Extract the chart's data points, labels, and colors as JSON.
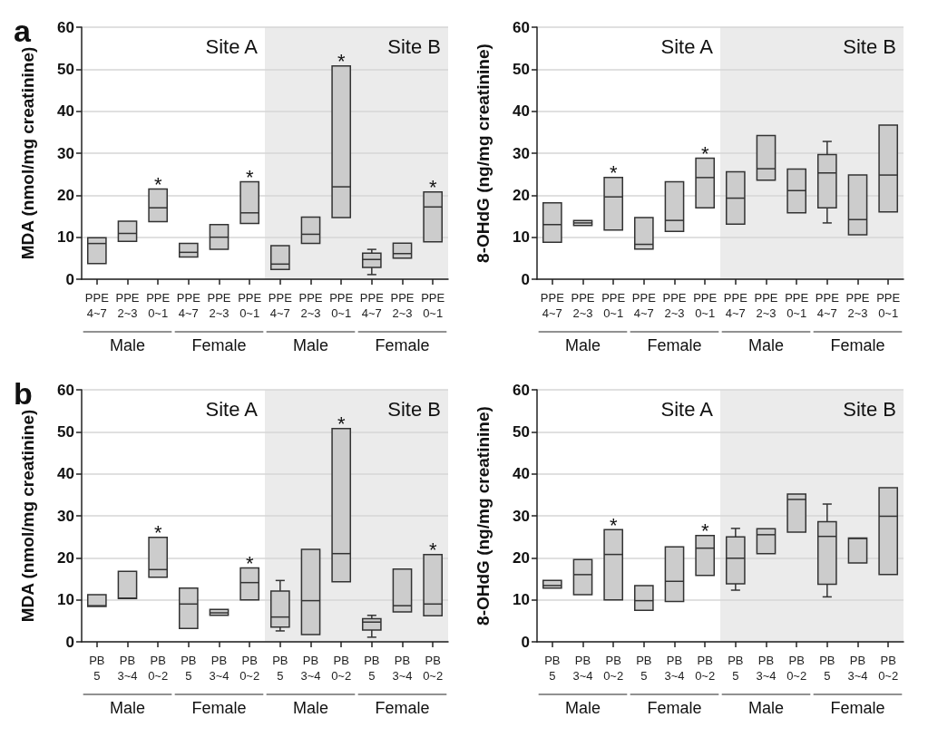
{
  "chart_data": [
    {
      "type": "box",
      "title": "a",
      "ylabel": "MDA (nmol/mg creatinine)",
      "color": "#cccccc",
      "grid": "y",
      "categories": [
        "PPE\n4~7",
        "PPE\n2~3",
        "PPE\n0~1",
        "PPE\n4~7",
        "PPE\n2~3",
        "PPE\n0~1",
        "PPE\n4~7",
        "PPE\n2~3",
        "PPE\n0~1",
        "PPE\n4~7",
        "PPE\n2~3",
        "PPE\n0~1"
      ],
      "ylim": [
        0,
        60
      ],
      "yticks": [
        0,
        10,
        20,
        30,
        40,
        50,
        60
      ],
      "boxes": [
        {
          "low": 3.7,
          "q1": 3.7,
          "median": 8.5,
          "q3": 9.9,
          "high": 9.9
        },
        {
          "low": 9,
          "q1": 9,
          "median": 10.9,
          "q3": 13.8,
          "high": 13.8
        },
        {
          "low": 13.7,
          "q1": 13.7,
          "median": 17,
          "q3": 21.5,
          "high": 21.5
        },
        {
          "low": 5.3,
          "q1": 5.3,
          "median": 6.4,
          "q3": 8.5,
          "high": 8.5
        },
        {
          "low": 7.1,
          "q1": 7.1,
          "median": 10,
          "q3": 13,
          "high": 13
        },
        {
          "low": 13.3,
          "q1": 13.3,
          "median": 15.8,
          "q3": 23.2,
          "high": 23.2
        },
        {
          "low": 2.3,
          "q1": 2.3,
          "median": 3.6,
          "q3": 8,
          "high": 8
        },
        {
          "low": 8.5,
          "q1": 8.5,
          "median": 10.7,
          "q3": 14.8,
          "high": 14.8
        },
        {
          "low": 14.7,
          "q1": 14.7,
          "median": 22,
          "q3": 50.8,
          "high": 50.8
        },
        {
          "low": 1.1,
          "q1": 2.8,
          "median": 4.7,
          "q3": 6.2,
          "high": 7.1
        },
        {
          "low": 5,
          "q1": 5,
          "median": 6.1,
          "q3": 8.6,
          "high": 8.6
        },
        {
          "low": 8.9,
          "q1": 8.9,
          "median": 17.2,
          "q3": 20.8,
          "high": 20.8
        }
      ],
      "value_labels": [
        null,
        null,
        "*",
        null,
        null,
        "*",
        null,
        null,
        "*",
        null,
        null,
        "*"
      ],
      "annotations": [
        "Site A",
        "Site B",
        "Male",
        "Female",
        "Male",
        "Female"
      ]
    },
    {
      "type": "box",
      "ylabel": "8-OHdG (ng/mg creatinine)",
      "color": "#cccccc",
      "grid": "y",
      "categories": [
        "PPE\n4~7",
        "PPE\n2~3",
        "PPE\n0~1",
        "PPE\n4~7",
        "PPE\n2~3",
        "PPE\n0~1",
        "PPE\n4~7",
        "PPE\n2~3",
        "PPE\n0~1",
        "PPE\n4~7",
        "PPE\n2~3",
        "PPE\n0~1"
      ],
      "ylim": [
        0,
        60
      ],
      "yticks": [
        0,
        10,
        20,
        30,
        40,
        50,
        60
      ],
      "boxes": [
        {
          "low": 8.8,
          "q1": 8.8,
          "median": 13,
          "q3": 18.2,
          "high": 18.2
        },
        {
          "low": 12.8,
          "q1": 12.8,
          "median": 13.4,
          "q3": 14,
          "high": 14
        },
        {
          "low": 11.7,
          "q1": 11.7,
          "median": 19.6,
          "q3": 24.2,
          "high": 24.2
        },
        {
          "low": 7.2,
          "q1": 7.2,
          "median": 8.3,
          "q3": 14.7,
          "high": 14.7
        },
        {
          "low": 11.4,
          "q1": 11.4,
          "median": 14,
          "q3": 23.2,
          "high": 23.2
        },
        {
          "low": 17,
          "q1": 17,
          "median": 24.2,
          "q3": 28.8,
          "high": 28.8
        },
        {
          "low": 13.1,
          "q1": 13.1,
          "median": 19.3,
          "q3": 25.6,
          "high": 25.6
        },
        {
          "low": 23.6,
          "q1": 23.6,
          "median": 26.3,
          "q3": 34.2,
          "high": 34.2
        },
        {
          "low": 15.8,
          "q1": 15.8,
          "median": 21.1,
          "q3": 26.2,
          "high": 26.2
        },
        {
          "low": 13.4,
          "q1": 17,
          "median": 25.3,
          "q3": 29.7,
          "high": 32.8
        },
        {
          "low": 10.6,
          "q1": 10.6,
          "median": 14.2,
          "q3": 24.8,
          "high": 24.8
        },
        {
          "low": 16,
          "q1": 16,
          "median": 24.8,
          "q3": 36.7,
          "high": 36.7
        }
      ],
      "value_labels": [
        null,
        null,
        "*",
        null,
        null,
        "*",
        null,
        null,
        null,
        null,
        null,
        null
      ],
      "annotations": [
        "Site A",
        "Site B",
        "Male",
        "Female",
        "Male",
        "Female"
      ]
    },
    {
      "type": "box",
      "title": "b",
      "ylabel": "MDA (nmol/mg creatinine)",
      "color": "#cccccc",
      "grid": "y",
      "categories": [
        "PB\n5",
        "PB\n3~4",
        "PB\n0~2",
        "PB\n5",
        "PB\n3~4",
        "PB\n0~2",
        "PB\n5",
        "PB\n3~4",
        "PB\n0~2",
        "PB\n5",
        "PB\n3~4",
        "PB\n0~2"
      ],
      "ylim": [
        0,
        60
      ],
      "yticks": [
        0,
        10,
        20,
        30,
        40,
        50,
        60
      ],
      "boxes": [
        {
          "low": 8.4,
          "q1": 8.4,
          "median": 8.6,
          "q3": 11.2,
          "high": 11.2
        },
        {
          "low": 10.3,
          "q1": 10.3,
          "median": 10.4,
          "q3": 16.8,
          "high": 16.8
        },
        {
          "low": 15.4,
          "q1": 15.4,
          "median": 17.2,
          "q3": 24.9,
          "high": 24.9
        },
        {
          "low": 3.2,
          "q1": 3.2,
          "median": 9,
          "q3": 12.8,
          "high": 12.8
        },
        {
          "low": 6.3,
          "q1": 6.3,
          "median": 6.9,
          "q3": 7.7,
          "high": 7.7
        },
        {
          "low": 10,
          "q1": 10,
          "median": 14.1,
          "q3": 17.6,
          "high": 17.6
        },
        {
          "low": 2.6,
          "q1": 3.5,
          "median": 5.9,
          "q3": 12.1,
          "high": 14.6
        },
        {
          "low": 1.7,
          "q1": 1.7,
          "median": 9.8,
          "q3": 22,
          "high": 22
        },
        {
          "low": 14.3,
          "q1": 14.3,
          "median": 21,
          "q3": 50.8,
          "high": 50.8
        },
        {
          "low": 1.1,
          "q1": 2.8,
          "median": 4.7,
          "q3": 5.5,
          "high": 6.3
        },
        {
          "low": 7.1,
          "q1": 7.1,
          "median": 8.6,
          "q3": 17.3,
          "high": 17.3
        },
        {
          "low": 6.2,
          "q1": 6.2,
          "median": 9,
          "q3": 20.8,
          "high": 20.8
        }
      ],
      "value_labels": [
        null,
        null,
        "*",
        null,
        null,
        "*",
        null,
        null,
        "*",
        null,
        null,
        "*"
      ],
      "annotations": [
        "Site A",
        "Site B",
        "Male",
        "Female",
        "Male",
        "Female"
      ]
    },
    {
      "type": "box",
      "ylabel": "8-OHdG (ng/mg creatinine)",
      "color": "#cccccc",
      "grid": "y",
      "categories": [
        "PB\n5",
        "PB\n3~4",
        "PB\n0~2",
        "PB\n5",
        "PB\n3~4",
        "PB\n0~2",
        "PB\n5",
        "PB\n3~4",
        "PB\n0~2",
        "PB\n5",
        "PB\n3~4",
        "PB\n0~2"
      ],
      "ylim": [
        0,
        60
      ],
      "yticks": [
        0,
        10,
        20,
        30,
        40,
        50,
        60
      ],
      "boxes": [
        {
          "low": 12.8,
          "q1": 12.8,
          "median": 13.4,
          "q3": 14.6,
          "high": 14.6
        },
        {
          "low": 11.2,
          "q1": 11.2,
          "median": 16,
          "q3": 19.6,
          "high": 19.6
        },
        {
          "low": 10,
          "q1": 10,
          "median": 20.8,
          "q3": 26.7,
          "high": 26.7
        },
        {
          "low": 7.5,
          "q1": 7.5,
          "median": 9.8,
          "q3": 13.4,
          "high": 13.4
        },
        {
          "low": 9.6,
          "q1": 9.6,
          "median": 14.4,
          "q3": 22.6,
          "high": 22.6
        },
        {
          "low": 15.8,
          "q1": 15.8,
          "median": 22.3,
          "q3": 25.3,
          "high": 25.3
        },
        {
          "low": 12.3,
          "q1": 13.8,
          "median": 19.9,
          "q3": 25,
          "high": 27
        },
        {
          "low": 21,
          "q1": 21,
          "median": 25.5,
          "q3": 26.9,
          "high": 26.9
        },
        {
          "low": 26.1,
          "q1": 26.1,
          "median": 33.9,
          "q3": 35.2,
          "high": 35.2
        },
        {
          "low": 10.7,
          "q1": 13.7,
          "median": 25.1,
          "q3": 28.6,
          "high": 32.8
        },
        {
          "low": 18.8,
          "q1": 18.8,
          "median": 24.6,
          "q3": 24.7,
          "high": 24.7
        },
        {
          "low": 16,
          "q1": 16,
          "median": 29.9,
          "q3": 36.7,
          "high": 36.7
        }
      ],
      "value_labels": [
        null,
        null,
        "*",
        null,
        null,
        "*",
        null,
        null,
        null,
        null,
        null,
        null
      ],
      "annotations": [
        "Site A",
        "Site B",
        "Male",
        "Female",
        "Male",
        "Female"
      ]
    }
  ]
}
